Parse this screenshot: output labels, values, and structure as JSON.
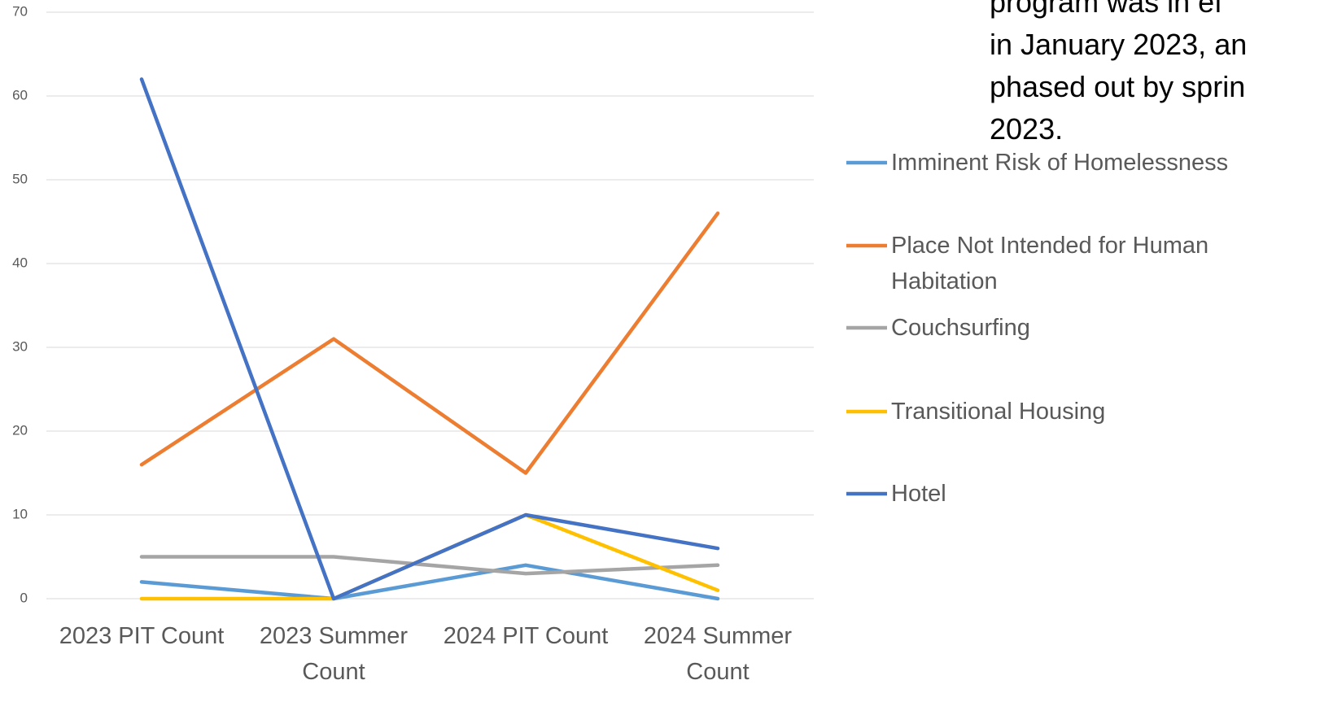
{
  "chart_data": {
    "type": "line",
    "categories": [
      "2023 PIT Count",
      "2023 Summer Count",
      "2024 PIT Count",
      "2024 Summer Count"
    ],
    "series": [
      {
        "name": "Imminent Risk of Homelessness",
        "color": "#5b9bd5",
        "values": [
          2,
          0,
          4,
          0
        ]
      },
      {
        "name": "Place Not Intended for Human Habitation",
        "color": "#ed7d31",
        "values": [
          16,
          31,
          15,
          46
        ]
      },
      {
        "name": "Couchsurfing",
        "color": "#a5a5a5",
        "values": [
          5,
          5,
          3,
          4
        ]
      },
      {
        "name": "Transitional Housing",
        "color": "#ffc000",
        "values": [
          0,
          0,
          10,
          1
        ]
      },
      {
        "name": "Hotel",
        "color": "#4472c4",
        "values": [
          62,
          0,
          10,
          6
        ]
      }
    ],
    "ylim": [
      0,
      70
    ],
    "yticks": [
      0,
      10,
      20,
      30,
      40,
      50,
      60,
      70
    ],
    "grid": true,
    "legend": "right",
    "annotation": [
      "program was in ef",
      "in January 2023, an",
      "phased out by sprin",
      "2023."
    ]
  }
}
